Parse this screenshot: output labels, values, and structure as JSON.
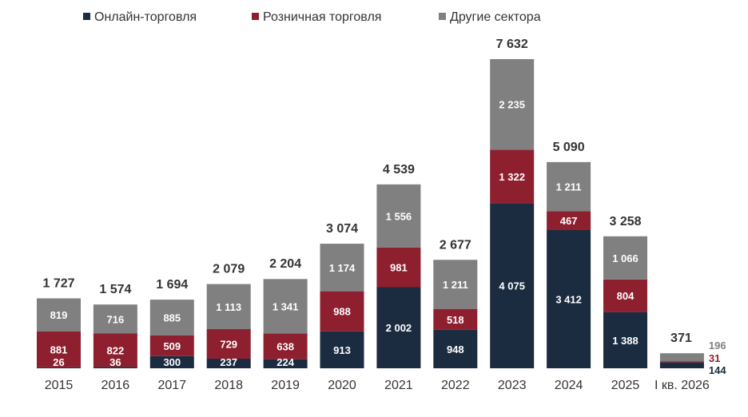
{
  "chart_data": {
    "type": "bar",
    "stacked": true,
    "title": "",
    "xlabel": "",
    "ylabel": "",
    "categories": [
      "2015",
      "2016",
      "2017",
      "2018",
      "2019",
      "2020",
      "2021",
      "2022",
      "2023",
      "2024",
      "2025",
      "I кв. 2026"
    ],
    "series": [
      {
        "name": "Онлайн-торговля",
        "color": "#1b2b40",
        "values": [
          26,
          36,
          300,
          237,
          224,
          913,
          2002,
          948,
          4075,
          3412,
          1388,
          144
        ]
      },
      {
        "name": "Розничная торговля",
        "color": "#8e1f2f",
        "values": [
          881,
          822,
          509,
          729,
          638,
          988,
          981,
          518,
          1322,
          467,
          804,
          31
        ]
      },
      {
        "name": "Другие сектора",
        "color": "#808080",
        "values": [
          819,
          716,
          885,
          1113,
          1341,
          1174,
          1556,
          1211,
          2235,
          1211,
          1066,
          196
        ]
      }
    ],
    "segment_labels": [
      [
        "26",
        "36",
        "300",
        "237",
        "224",
        "913",
        "2 002",
        "948",
        "4 075",
        "3 412",
        "1 388",
        "144"
      ],
      [
        "881",
        "822",
        "509",
        "729",
        "638",
        "988",
        "981",
        "518",
        "1 322",
        "467",
        "804",
        "31"
      ],
      [
        "819",
        "716",
        "885",
        "1 113",
        "1 341",
        "1 174",
        "1 556",
        "1 211",
        "2 235",
        "1 211",
        "1 066",
        "196"
      ]
    ],
    "totals": [
      1727,
      1574,
      1694,
      2079,
      2204,
      3074,
      4539,
      2677,
      7632,
      5090,
      3258,
      371
    ],
    "total_labels": [
      "1 727",
      "1 574",
      "1 694",
      "2 079",
      "2 204",
      "3 074",
      "4 539",
      "2 677",
      "7 632",
      "5 090",
      "3 258",
      "371"
    ],
    "ylim": [
      0,
      7632
    ],
    "legend_position": "top",
    "grid": false
  }
}
